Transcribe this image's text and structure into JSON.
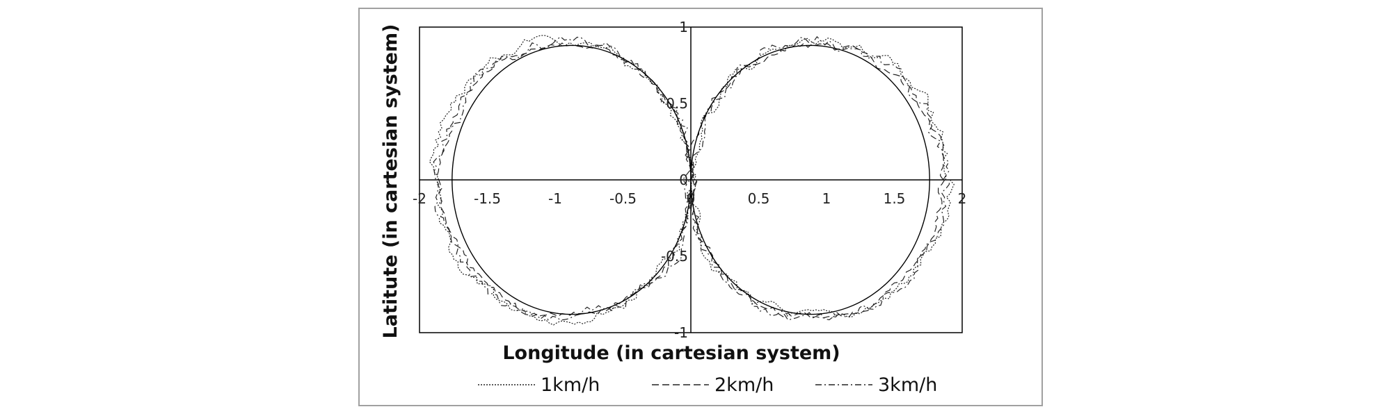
{
  "chart_data": {
    "type": "line",
    "xlabel": "Longitude (in cartesian system)",
    "ylabel": "Latitute (in cartesian system)",
    "xlim": [
      -2,
      2
    ],
    "ylim": [
      -1,
      1
    ],
    "x_ticks": [
      "-2",
      "-1.5",
      "-1",
      "-0.5",
      "0",
      "0.5",
      "1",
      "1.5",
      "2"
    ],
    "y_ticks": [
      "1",
      "0.5",
      "0",
      "-0.5",
      "-1"
    ],
    "grid": false,
    "legend_position": "bottom",
    "reference_curve": {
      "shape": "figure-eight",
      "circles": [
        {
          "center": [
            -0.88,
            0
          ],
          "radius_x": 0.88,
          "radius_y": 0.88
        },
        {
          "center": [
            0.88,
            0
          ],
          "radius_x": 0.88,
          "radius_y": 0.88
        }
      ]
    },
    "series": [
      {
        "name": "1km/h",
        "dash": "dotted",
        "center_offset": 0.95,
        "radius": 0.95,
        "noise": 0.03
      },
      {
        "name": "2km/h",
        "dash": "dashed",
        "center_offset": 0.92,
        "radius": 0.93,
        "noise": 0.025
      },
      {
        "name": "3km/h",
        "dash": "dash-dot",
        "center_offset": 0.93,
        "radius": 0.94,
        "noise": 0.035
      }
    ]
  }
}
